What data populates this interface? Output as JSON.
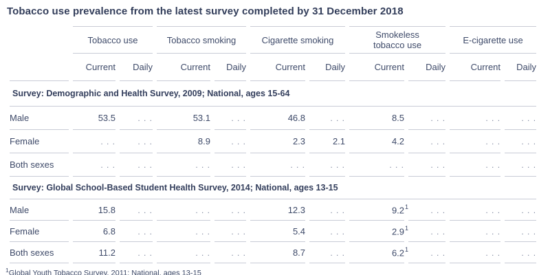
{
  "title": "Tobacco use prevalence from the latest survey completed by 31 December 2018",
  "colors": {
    "text": "#3d4968",
    "title_text": "#323d5a",
    "rule_line": "#c8cbd5",
    "missing_dots": "#7b849c",
    "background": "#ffffff"
  },
  "table": {
    "column_groups": [
      {
        "label_lines": [
          "Tobacco use"
        ]
      },
      {
        "label_lines": [
          "Tobacco smoking"
        ]
      },
      {
        "label_lines": [
          "Cigarette smoking"
        ]
      },
      {
        "label_lines": [
          "Smokeless",
          "tobacco use"
        ]
      },
      {
        "label_lines": [
          "E-cigarette use"
        ]
      }
    ],
    "sub_headers": [
      "Current",
      "Daily",
      "Current",
      "Daily",
      "Current",
      "Daily",
      "Current",
      "Daily",
      "Current",
      "Daily"
    ],
    "missing_marker": ". . .",
    "sections": [
      {
        "header": "Survey: Demographic and Health Survey, 2009; National, ages 15-64",
        "rows": [
          {
            "label": "Male",
            "values": [
              "53.5",
              ". . .",
              "53.1",
              ". . .",
              "46.8",
              ". . .",
              "8.5",
              ". . .",
              ". . .",
              ". . ."
            ]
          },
          {
            "label": "Female",
            "values": [
              ". . .",
              ". . .",
              "8.9",
              ". . .",
              "2.3",
              "2.1",
              "4.2",
              ". . .",
              ". . .",
              ". . ."
            ]
          },
          {
            "label": "Both sexes",
            "values": [
              ". . .",
              ". . .",
              ". . .",
              ". . .",
              ". . .",
              ". . .",
              ". . .",
              ". . .",
              ". . .",
              ". . ."
            ]
          }
        ]
      },
      {
        "header": "Survey: Global School-Based Student Health Survey, 2014; National, ages 13-15",
        "rows": [
          {
            "label": "Male",
            "values": [
              "15.8",
              ". . .",
              ". . .",
              ". . .",
              "12.3",
              ". . .",
              "9.2¹",
              ". . .",
              ". . .",
              ". . ."
            ]
          },
          {
            "label": "Female",
            "values": [
              "6.8",
              ". . .",
              ". . .",
              ". . .",
              "5.4",
              ". . .",
              "2.9¹",
              ". . .",
              ". . .",
              ". . ."
            ]
          },
          {
            "label": "Both sexes",
            "values": [
              "11.2",
              ". . .",
              ". . .",
              ". . .",
              "8.7",
              ". . .",
              "6.2¹",
              ". . .",
              ". . .",
              ". . ."
            ]
          }
        ]
      }
    ]
  },
  "footnote": {
    "marker": "1",
    "text": "Global Youth Tobacco Survey, 2011; National, ages 13-15"
  }
}
